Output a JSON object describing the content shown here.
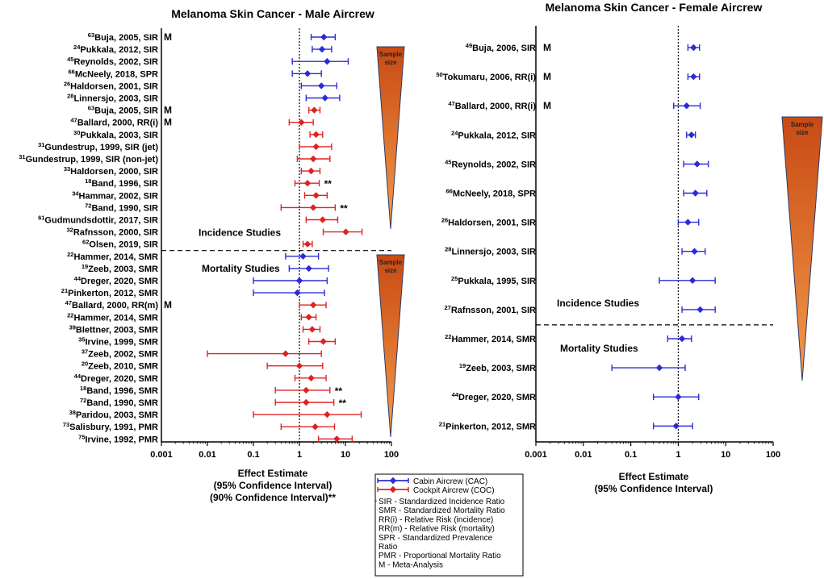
{
  "colors": {
    "cabin": "#2b2bd8",
    "cockpit": "#e02222",
    "triangle_top": "#c84a14",
    "triangle_bottom": "#f08a3c"
  },
  "chart_data": [
    {
      "type": "forest",
      "title": "Melanoma Skin Cancer - Male Aircrew",
      "xscale": "log",
      "xlim": [
        0.001,
        100
      ],
      "xticks": [
        "0.001",
        "0.01",
        "0.1",
        "1",
        "10",
        "100"
      ],
      "xtick_values": [
        0.001,
        0.01,
        0.1,
        1,
        10,
        100
      ],
      "xlabel_lines": [
        "Effect Estimate",
        "(95%  Confidence  Interval)",
        "(90% Confidence Interval)**"
      ],
      "reference_line": 1,
      "sections": [
        {
          "name": "Incidence Studies",
          "triangle_label": [
            "Sample",
            "size"
          ],
          "rows": [
            {
              "ref": "63",
              "label": "Buja, 2005, SIR",
              "group": "cabin",
              "est": 3.4,
              "lo": 1.8,
              "hi": 6.0,
              "mark": "M",
              "stars": ""
            },
            {
              "ref": "24",
              "label": "Pukkala, 2012, SIR",
              "group": "cabin",
              "est": 3.1,
              "lo": 1.9,
              "hi": 5.0,
              "mark": "",
              "stars": ""
            },
            {
              "ref": "45",
              "label": "Reynolds, 2002, SIR",
              "group": "cabin",
              "est": 4.0,
              "lo": 0.7,
              "hi": 11.5,
              "mark": "",
              "stars": ""
            },
            {
              "ref": "66",
              "label": "McNeely, 2018, SPR",
              "group": "cabin",
              "est": 1.5,
              "lo": 0.7,
              "hi": 3.0,
              "mark": "",
              "stars": ""
            },
            {
              "ref": "26",
              "label": "Haldorsen, 2001, SIR",
              "group": "cabin",
              "est": 3.0,
              "lo": 1.1,
              "hi": 6.5,
              "mark": "",
              "stars": ""
            },
            {
              "ref": "28",
              "label": "Linnersjo, 2003, SIR",
              "group": "cabin",
              "est": 3.6,
              "lo": 1.4,
              "hi": 7.5,
              "mark": "",
              "stars": ""
            },
            {
              "ref": "63",
              "label": "Buja, 2005, SIR",
              "group": "cockpit",
              "est": 2.1,
              "lo": 1.6,
              "hi": 2.8,
              "mark": "M",
              "stars": ""
            },
            {
              "ref": "47",
              "label": "Ballard, 2000, RR(i)",
              "group": "cockpit",
              "est": 1.1,
              "lo": 0.6,
              "hi": 2.0,
              "mark": "M",
              "stars": ""
            },
            {
              "ref": "30",
              "label": "Pukkala, 2003, SIR",
              "group": "cockpit",
              "est": 2.3,
              "lo": 1.7,
              "hi": 3.2,
              "mark": "",
              "stars": ""
            },
            {
              "ref": "31",
              "label": "Gundestrup, 1999, SIR (jet)",
              "group": "cockpit",
              "est": 2.3,
              "lo": 1.0,
              "hi": 5.0,
              "mark": "",
              "stars": ""
            },
            {
              "ref": "31",
              "label": "Gundestrup, 1999, SIR (non-jet)",
              "group": "cockpit",
              "est": 2.0,
              "lo": 0.9,
              "hi": 4.6,
              "mark": "",
              "stars": ""
            },
            {
              "ref": "33",
              "label": "Haldorsen, 2000, SIR",
              "group": "cockpit",
              "est": 1.8,
              "lo": 1.1,
              "hi": 2.8,
              "mark": "",
              "stars": ""
            },
            {
              "ref": "18",
              "label": "Band, 1996, SIR",
              "group": "cockpit",
              "est": 1.5,
              "lo": 0.8,
              "hi": 2.7,
              "mark": "",
              "stars": "**"
            },
            {
              "ref": "34",
              "label": "Hammar, 2002, SIR",
              "group": "cockpit",
              "est": 2.3,
              "lo": 1.3,
              "hi": 4.0,
              "mark": "",
              "stars": ""
            },
            {
              "ref": "72",
              "label": "Band, 1990, SIR",
              "group": "cockpit",
              "est": 2.0,
              "lo": 0.4,
              "hi": 6.0,
              "mark": "",
              "stars": "**"
            },
            {
              "ref": "61",
              "label": "Gudmundsdottir, 2017, SIR",
              "group": "cockpit",
              "est": 3.2,
              "lo": 1.4,
              "hi": 6.8,
              "mark": "",
              "stars": ""
            },
            {
              "ref": "32",
              "label": "Rafnsson, 2000, SIR",
              "group": "cockpit",
              "est": 10.2,
              "lo": 3.3,
              "hi": 23.0,
              "mark": "",
              "stars": ""
            },
            {
              "ref": "62",
              "label": "Olsen, 2019, SIR",
              "group": "cockpit",
              "est": 1.5,
              "lo": 1.2,
              "hi": 1.9,
              "mark": "",
              "stars": ""
            }
          ]
        },
        {
          "name": "Mortality Studies",
          "triangle_label": [
            "Sample",
            "size"
          ],
          "rows": [
            {
              "ref": "22",
              "label": "Hammer, 2014, SMR",
              "group": "cabin",
              "est": 1.2,
              "lo": 0.5,
              "hi": 2.6,
              "mark": "",
              "stars": ""
            },
            {
              "ref": "19",
              "label": "Zeeb, 2003, SMR",
              "group": "cabin",
              "est": 1.6,
              "lo": 0.6,
              "hi": 4.3,
              "mark": "",
              "stars": ""
            },
            {
              "ref": "44",
              "label": "Dreger, 2020, SMR",
              "group": "cabin",
              "est": 1.0,
              "lo": 0.1,
              "hi": 4.0,
              "mark": "",
              "stars": ""
            },
            {
              "ref": "21",
              "label": "Pinkerton, 2012, SMR",
              "group": "cabin",
              "est": 0.9,
              "lo": 0.1,
              "hi": 3.5,
              "mark": "",
              "stars": ""
            },
            {
              "ref": "47",
              "label": "Ballard, 2000, RR(m)",
              "group": "cockpit",
              "est": 2.0,
              "lo": 1.0,
              "hi": 3.8,
              "mark": "M",
              "stars": ""
            },
            {
              "ref": "22",
              "label": "Hammer, 2014, SMR",
              "group": "cockpit",
              "est": 1.6,
              "lo": 1.1,
              "hi": 2.3,
              "mark": "",
              "stars": ""
            },
            {
              "ref": "39",
              "label": "Blettner, 2003, SMR",
              "group": "cockpit",
              "est": 1.9,
              "lo": 1.2,
              "hi": 2.8,
              "mark": "",
              "stars": ""
            },
            {
              "ref": "35",
              "label": "Irvine, 1999, SMR",
              "group": "cockpit",
              "est": 3.3,
              "lo": 1.6,
              "hi": 6.0,
              "mark": "",
              "stars": ""
            },
            {
              "ref": "37",
              "label": "Zeeb, 2002, SMR",
              "group": "cockpit",
              "est": 0.5,
              "lo": 0.01,
              "hi": 3.0,
              "mark": "",
              "stars": ""
            },
            {
              "ref": "20",
              "label": "Zeeb, 2010, SMR",
              "group": "cockpit",
              "est": 1.0,
              "lo": 0.2,
              "hi": 3.2,
              "mark": "",
              "stars": ""
            },
            {
              "ref": "44",
              "label": "Dreger, 2020, SMR",
              "group": "cockpit",
              "est": 1.8,
              "lo": 0.8,
              "hi": 3.8,
              "mark": "",
              "stars": ""
            },
            {
              "ref": "18",
              "label": "Band, 1996, SMR",
              "group": "cockpit",
              "est": 1.4,
              "lo": 0.3,
              "hi": 4.6,
              "mark": "",
              "stars": "**"
            },
            {
              "ref": "72",
              "label": "Band, 1990, SMR",
              "group": "cockpit",
              "est": 1.4,
              "lo": 0.3,
              "hi": 5.6,
              "mark": "",
              "stars": "**"
            },
            {
              "ref": "38",
              "label": "Paridou, 2003, SMR",
              "group": "cockpit",
              "est": 4.0,
              "lo": 0.1,
              "hi": 22.0,
              "mark": "",
              "stars": ""
            },
            {
              "ref": "73",
              "label": "Salisbury, 1991, PMR",
              "group": "cockpit",
              "est": 2.2,
              "lo": 0.4,
              "hi": 5.8,
              "mark": "",
              "stars": ""
            },
            {
              "ref": "75",
              "label": "Irvine, 1992, PMR",
              "group": "cockpit",
              "est": 6.5,
              "lo": 2.6,
              "hi": 14.0,
              "mark": "",
              "stars": ""
            }
          ]
        }
      ]
    },
    {
      "type": "forest",
      "title": "Melanoma Skin Cancer - Female Aircrew",
      "xscale": "log",
      "xlim": [
        0.001,
        100
      ],
      "xticks": [
        "0.001",
        "0.01",
        "0.1",
        "1",
        "10",
        "100"
      ],
      "xtick_values": [
        0.001,
        0.01,
        0.1,
        1,
        10,
        100
      ],
      "xlabel_lines": [
        "Effect Estimate",
        "(95%  Confidence  Interval)"
      ],
      "reference_line": 1,
      "triangle_label": [
        "Sample",
        "size"
      ],
      "sections": [
        {
          "name": "Incidence Studies",
          "rows": [
            {
              "ref": "49",
              "label": "Buja, 2006, SIR",
              "group": "cabin",
              "est": 2.1,
              "lo": 1.6,
              "hi": 2.8,
              "mark": "M",
              "stars": ""
            },
            {
              "ref": "50",
              "label": "Tokumaru, 2006, RR(i)",
              "group": "cabin",
              "est": 2.1,
              "lo": 1.6,
              "hi": 2.8,
              "mark": "M",
              "stars": ""
            },
            {
              "ref": "47",
              "label": "Ballard, 2000, RR(i)",
              "group": "cabin",
              "est": 1.5,
              "lo": 0.8,
              "hi": 2.9,
              "mark": "M",
              "stars": ""
            },
            {
              "ref": "24",
              "label": "Pukkala, 2012, SIR",
              "group": "cabin",
              "est": 1.9,
              "lo": 1.5,
              "hi": 2.3,
              "mark": "",
              "stars": ""
            },
            {
              "ref": "45",
              "label": "Reynolds, 2002, SIR",
              "group": "cabin",
              "est": 2.5,
              "lo": 1.3,
              "hi": 4.3,
              "mark": "",
              "stars": ""
            },
            {
              "ref": "66",
              "label": "McNeely, 2018, SPR",
              "group": "cabin",
              "est": 2.3,
              "lo": 1.3,
              "hi": 4.0,
              "mark": "",
              "stars": ""
            },
            {
              "ref": "26",
              "label": "Haldorsen, 2001, SIR",
              "group": "cabin",
              "est": 1.6,
              "lo": 1.0,
              "hi": 2.7,
              "mark": "",
              "stars": ""
            },
            {
              "ref": "28",
              "label": "Linnersjo, 2003, SIR",
              "group": "cabin",
              "est": 2.2,
              "lo": 1.2,
              "hi": 3.7,
              "mark": "",
              "stars": ""
            },
            {
              "ref": "25",
              "label": "Pukkala, 1995, SIR",
              "group": "cabin",
              "est": 2.0,
              "lo": 0.4,
              "hi": 6.0,
              "mark": "",
              "stars": ""
            },
            {
              "ref": "27",
              "label": "Rafnsson, 2001, SIR",
              "group": "cabin",
              "est": 2.9,
              "lo": 1.2,
              "hi": 6.0,
              "mark": "",
              "stars": ""
            }
          ]
        },
        {
          "name": "Mortality Studies",
          "rows": [
            {
              "ref": "22",
              "label": "Hammer, 2014, SMR",
              "group": "cabin",
              "est": 1.2,
              "lo": 0.6,
              "hi": 1.9,
              "mark": "",
              "stars": ""
            },
            {
              "ref": "19",
              "label": "Zeeb, 2003, SMR",
              "group": "cabin",
              "est": 0.4,
              "lo": 0.04,
              "hi": 1.4,
              "mark": "",
              "stars": ""
            },
            {
              "ref": "44",
              "label": "Dreger, 2020, SMR",
              "group": "cabin",
              "est": 1.0,
              "lo": 0.3,
              "hi": 2.7,
              "mark": "",
              "stars": ""
            },
            {
              "ref": "21",
              "label": "Pinkerton, 2012, SMR",
              "group": "cabin",
              "est": 0.9,
              "lo": 0.3,
              "hi": 2.0,
              "mark": "",
              "stars": ""
            }
          ]
        }
      ]
    }
  ],
  "legend": {
    "series": [
      {
        "group": "cabin",
        "label": "Cabin Aircrew  (CAC)"
      },
      {
        "group": "cockpit",
        "label": "Cockpit Aircrew  (COC)"
      }
    ],
    "dash_marker": "-",
    "abbreviations": [
      "SIR - Standardized Incidence Ratio",
      "SMR - Standardized Mortality Ratio",
      "RR(i) - Relative Risk  (incidence)",
      "RR(m) - Relative Risk  (mortality)",
      "SPR - Standardized Prevalence",
      "Ratio",
      "PMR - Proportional Mortality Ratio",
      "M - Meta-Analysis"
    ]
  }
}
